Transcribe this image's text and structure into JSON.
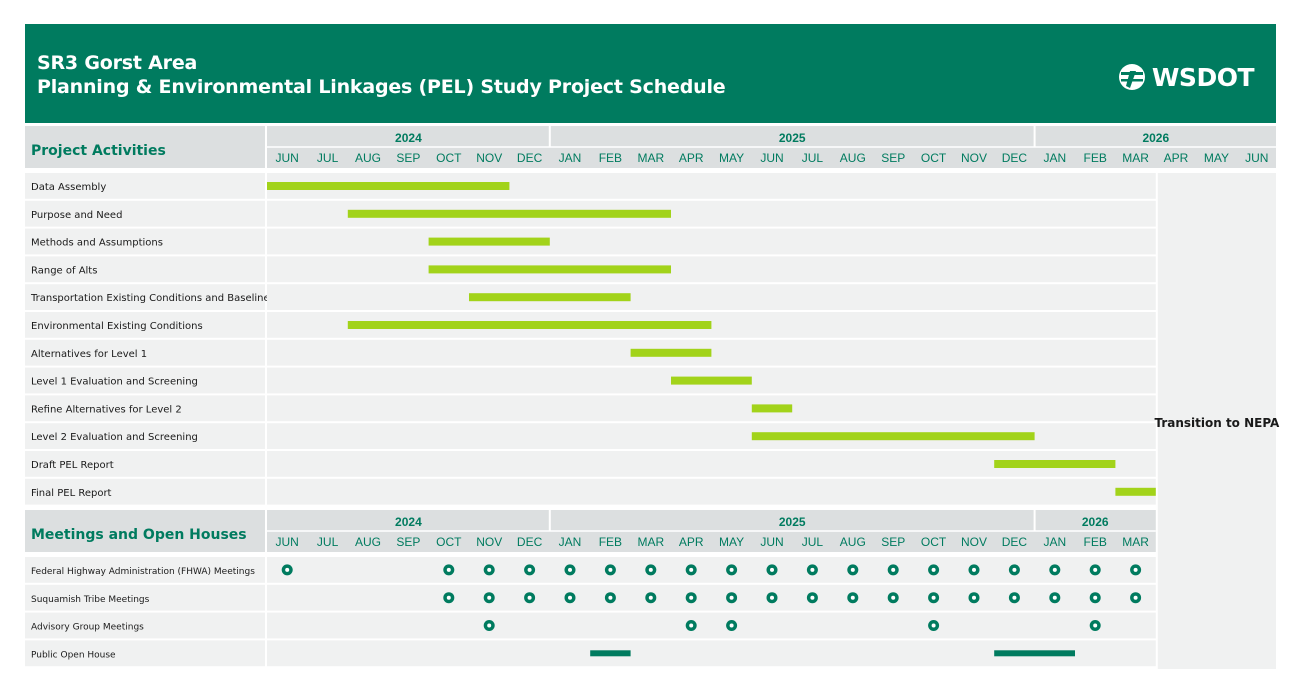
{
  "header": {
    "line1": "SR3 Gorst Area",
    "line2": "Planning & Environmental Linkages (PEL) Study Project Schedule",
    "logo_text": "WSDOT",
    "logo_icon": "wsdot-flag-icon",
    "background": "#007b5f"
  },
  "chart_data": [
    {
      "type": "gantt",
      "section_title": "Project Activities",
      "years": [
        {
          "label": "2024",
          "months": 7
        },
        {
          "label": "2025",
          "months": 12
        },
        {
          "label": "2026",
          "months": 6
        }
      ],
      "months": [
        "JUN",
        "JUL",
        "AUG",
        "SEP",
        "OCT",
        "NOV",
        "DEC",
        "JAN",
        "FEB",
        "MAR",
        "APR",
        "MAY",
        "JUN",
        "JUL",
        "AUG",
        "SEP",
        "OCT",
        "NOV",
        "DEC",
        "JAN",
        "FEB",
        "MAR",
        "APR",
        "MAY",
        "JUN"
      ],
      "tasks": [
        {
          "name": "Data Assembly",
          "start": "2024-06",
          "end": "2024-11"
        },
        {
          "name": "Purpose and Need",
          "start": "2024-08",
          "end": "2025-03"
        },
        {
          "name": "Methods and Assumptions",
          "start": "2024-10",
          "end": "2024-12"
        },
        {
          "name": "Range of Alts",
          "start": "2024-10",
          "end": "2025-03"
        },
        {
          "name": "Transportation Existing Conditions and Baseline",
          "start": "2024-11",
          "end": "2025-02"
        },
        {
          "name": "Environmental Existing Conditions",
          "start": "2024-08",
          "end": "2025-04"
        },
        {
          "name": "Alternatives for Level 1",
          "start": "2025-03",
          "end": "2025-04"
        },
        {
          "name": "Level 1 Evaluation and Screening",
          "start": "2025-04",
          "end": "2025-05"
        },
        {
          "name": "Refine Alternatives for Level 2",
          "start": "2025-06",
          "end": "2025-06"
        },
        {
          "name": "Level 2 Evaluation and Screening",
          "start": "2025-06",
          "end": "2025-12"
        },
        {
          "name": "Draft PEL Report",
          "start": "2025-12",
          "end": "2026-02"
        },
        {
          "name": "Final PEL Report",
          "start": "2026-03",
          "end": "2026-03"
        }
      ],
      "side_note": "Transition to NEPA",
      "bar_color": "#a2d31a"
    },
    {
      "type": "gantt-milestones",
      "section_title": "Meetings and Open Houses",
      "years": [
        {
          "label": "2024",
          "months": 7
        },
        {
          "label": "2025",
          "months": 12
        },
        {
          "label": "2026",
          "months": 3
        }
      ],
      "months": [
        "JUN",
        "JUL",
        "AUG",
        "SEP",
        "OCT",
        "NOV",
        "DEC",
        "JAN",
        "FEB",
        "MAR",
        "APR",
        "MAY",
        "JUN",
        "JUL",
        "AUG",
        "SEP",
        "OCT",
        "NOV",
        "DEC",
        "JAN",
        "FEB",
        "MAR"
      ],
      "rows": [
        {
          "name": "Federal Highway Administration (FHWA) Meetings",
          "meetings": [
            "2024-06",
            "2024-10",
            "2024-11",
            "2024-12",
            "2025-01",
            "2025-02",
            "2025-03",
            "2025-04",
            "2025-05",
            "2025-06",
            "2025-07",
            "2025-08",
            "2025-09",
            "2025-10",
            "2025-11",
            "2025-12",
            "2026-01",
            "2026-02",
            "2026-03"
          ]
        },
        {
          "name": "Suquamish Tribe Meetings",
          "meetings": [
            "2024-10",
            "2024-11",
            "2024-12",
            "2025-01",
            "2025-02",
            "2025-03",
            "2025-04",
            "2025-05",
            "2025-06",
            "2025-07",
            "2025-08",
            "2025-09",
            "2025-10",
            "2025-11",
            "2025-12",
            "2026-01",
            "2026-02",
            "2026-03"
          ]
        },
        {
          "name": "Advisory Group Meetings",
          "meetings": [
            "2024-11",
            "2025-04",
            "2025-05",
            "2025-10",
            "2026-02"
          ]
        },
        {
          "name": "Public Open House",
          "periods": [
            {
              "start": "2025-02",
              "end": "2025-02"
            },
            {
              "start": "2025-12",
              "end": "2026-01"
            }
          ]
        }
      ],
      "marker_color": "#007b5f"
    }
  ]
}
